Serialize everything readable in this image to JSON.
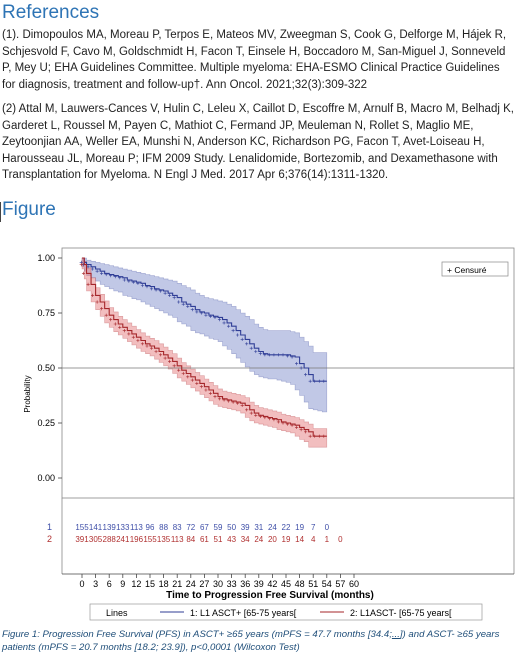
{
  "references": {
    "heading": "References",
    "items": [
      "(1). Dimopoulos MA, Moreau P, Terpos E, Mateos MV, Zweegman S, Cook G, Delforge M, Hájek R, Schjesvold F, Cavo M, Goldschmidt H, Facon T, Einsele H, Boccadoro M, San-Miguel J, Sonneveld P, Mey U; EHA Guidelines Committee. Multiple myeloma: EHA-ESMO Clinical Practice Guidelines for diagnosis, treatment and follow-up†. Ann Oncol. 2021;32(3):309-322",
      "(2) Attal M, Lauwers-Cances V, Hulin C, Leleu X, Caillot D, Escoffre M, Arnulf B, Macro M, Belhadj K, Garderet L, Roussel M, Payen C, Mathiot C, Fermand JP, Meuleman N, Rollet S, Maglio ME, Zeytoonjian AA, Weller EA, Munshi N, Anderson KC, Richardson PG, Facon T, Avet-Loiseau H, Harousseau JL, Moreau P; IFM 2009 Study. Lenalidomide, Bortezomib, and Dexamethasone with Transplantation for Myeloma. N Engl J Med. 2017 Apr 6;376(14):1311-1320."
    ]
  },
  "figure": {
    "heading": "Figure",
    "caption_pre": "Figure 1: Progression Free Survival (PFS) in ASCT+ ≥65 years (mPFS = 47.7 months [34.4;",
    "caption_link": "...",
    "caption_post": "]) and ASCT- ≥65 years patients (mPFS = 20.7 months [18.2; 23.9]), p<0,0001 (Wilcoxon Test)"
  },
  "chart_data": {
    "type": "line",
    "xlabel": "Time to Progression Free Survival (months)",
    "ylabel": "Probability",
    "xlim": [
      0,
      60
    ],
    "ylim": [
      0,
      1
    ],
    "xticks": [
      0,
      3,
      6,
      9,
      12,
      15,
      18,
      21,
      24,
      27,
      30,
      33,
      36,
      39,
      42,
      45,
      48,
      51,
      54,
      57,
      60
    ],
    "yticks": [
      0.0,
      0.25,
      0.5,
      0.75,
      1.0
    ],
    "ytick_labels": [
      "0.00",
      "0.25",
      "0.50",
      "0.75",
      "1.00"
    ],
    "reference_line": 0.5,
    "legend_censure": "+ Censuré",
    "legend_title": "Lines",
    "series": [
      {
        "name": "1: L1 ASCT+ [65-75 years[",
        "color": "#2f3d96",
        "band_color": "#8e9ad2",
        "x": [
          0,
          0.5,
          1,
          2,
          3,
          4,
          5,
          6,
          7,
          8,
          9,
          10,
          11,
          12,
          13,
          14,
          15,
          16,
          17,
          18,
          19,
          20,
          21,
          22,
          23,
          24,
          25,
          26,
          27,
          28,
          29,
          30,
          31,
          32,
          33,
          34,
          35,
          36,
          37,
          38,
          39,
          40,
          41,
          42,
          43,
          44,
          45,
          46,
          47,
          48,
          49,
          50,
          51,
          52,
          53,
          54
        ],
        "y": [
          1.0,
          0.98,
          0.97,
          0.96,
          0.95,
          0.94,
          0.93,
          0.925,
          0.92,
          0.915,
          0.91,
          0.9,
          0.895,
          0.89,
          0.885,
          0.875,
          0.87,
          0.86,
          0.855,
          0.85,
          0.84,
          0.83,
          0.82,
          0.8,
          0.79,
          0.78,
          0.765,
          0.755,
          0.75,
          0.74,
          0.735,
          0.73,
          0.72,
          0.705,
          0.69,
          0.67,
          0.65,
          0.63,
          0.61,
          0.59,
          0.575,
          0.565,
          0.56,
          0.56,
          0.56,
          0.56,
          0.56,
          0.555,
          0.55,
          0.52,
          0.5,
          0.47,
          0.44,
          0.44,
          0.44,
          0.44
        ],
        "lower": [
          1.0,
          0.96,
          0.94,
          0.92,
          0.91,
          0.895,
          0.88,
          0.87,
          0.86,
          0.85,
          0.845,
          0.83,
          0.825,
          0.815,
          0.81,
          0.8,
          0.79,
          0.78,
          0.77,
          0.76,
          0.75,
          0.74,
          0.73,
          0.71,
          0.7,
          0.69,
          0.67,
          0.66,
          0.655,
          0.645,
          0.635,
          0.63,
          0.62,
          0.6,
          0.585,
          0.565,
          0.545,
          0.525,
          0.505,
          0.485,
          0.47,
          0.46,
          0.455,
          0.45,
          0.45,
          0.445,
          0.44,
          0.435,
          0.425,
          0.4,
          0.375,
          0.345,
          0.315,
          0.31,
          0.305,
          0.3
        ],
        "upper": [
          1.0,
          1.0,
          0.99,
          0.985,
          0.98,
          0.975,
          0.97,
          0.965,
          0.96,
          0.955,
          0.95,
          0.945,
          0.94,
          0.935,
          0.93,
          0.925,
          0.92,
          0.915,
          0.91,
          0.905,
          0.9,
          0.895,
          0.885,
          0.875,
          0.865,
          0.855,
          0.84,
          0.83,
          0.82,
          0.815,
          0.81,
          0.805,
          0.8,
          0.79,
          0.78,
          0.765,
          0.75,
          0.735,
          0.72,
          0.7,
          0.685,
          0.675,
          0.67,
          0.67,
          0.67,
          0.67,
          0.67,
          0.665,
          0.66,
          0.64,
          0.62,
          0.6,
          0.57,
          0.57,
          0.57,
          0.57
        ]
      },
      {
        "name": "2: L1ASCT- [65-75 years[",
        "color": "#a5262a",
        "band_color": "#e7888a",
        "x": [
          0,
          0.5,
          1,
          2,
          3,
          4,
          5,
          6,
          7,
          8,
          9,
          10,
          11,
          12,
          13,
          14,
          15,
          16,
          17,
          18,
          19,
          20,
          21,
          22,
          23,
          24,
          25,
          26,
          27,
          28,
          29,
          30,
          31,
          32,
          33,
          34,
          35,
          36,
          37,
          38,
          39,
          40,
          41,
          42,
          43,
          44,
          45,
          46,
          47,
          48,
          49,
          50,
          51,
          52,
          53,
          54
        ],
        "y": [
          1.0,
          0.97,
          0.93,
          0.88,
          0.83,
          0.8,
          0.77,
          0.74,
          0.72,
          0.7,
          0.685,
          0.67,
          0.655,
          0.64,
          0.625,
          0.61,
          0.6,
          0.59,
          0.575,
          0.56,
          0.545,
          0.53,
          0.51,
          0.49,
          0.475,
          0.46,
          0.445,
          0.43,
          0.415,
          0.4,
          0.385,
          0.37,
          0.36,
          0.355,
          0.35,
          0.345,
          0.34,
          0.33,
          0.31,
          0.295,
          0.285,
          0.28,
          0.275,
          0.27,
          0.265,
          0.255,
          0.25,
          0.245,
          0.24,
          0.23,
          0.22,
          0.21,
          0.19,
          0.19,
          0.19,
          0.19
        ],
        "lower": [
          1.0,
          0.95,
          0.905,
          0.85,
          0.8,
          0.765,
          0.735,
          0.705,
          0.685,
          0.665,
          0.65,
          0.635,
          0.62,
          0.605,
          0.59,
          0.575,
          0.565,
          0.555,
          0.54,
          0.525,
          0.51,
          0.495,
          0.475,
          0.455,
          0.44,
          0.425,
          0.41,
          0.395,
          0.38,
          0.365,
          0.35,
          0.335,
          0.325,
          0.32,
          0.315,
          0.31,
          0.305,
          0.295,
          0.275,
          0.26,
          0.25,
          0.245,
          0.24,
          0.235,
          0.23,
          0.22,
          0.215,
          0.21,
          0.205,
          0.19,
          0.175,
          0.165,
          0.14,
          0.14,
          0.14,
          0.14
        ],
        "upper": [
          1.0,
          0.985,
          0.955,
          0.91,
          0.865,
          0.835,
          0.805,
          0.775,
          0.755,
          0.735,
          0.72,
          0.705,
          0.69,
          0.675,
          0.66,
          0.645,
          0.635,
          0.625,
          0.61,
          0.595,
          0.58,
          0.565,
          0.545,
          0.525,
          0.51,
          0.495,
          0.48,
          0.465,
          0.45,
          0.435,
          0.42,
          0.405,
          0.395,
          0.39,
          0.385,
          0.38,
          0.375,
          0.365,
          0.345,
          0.33,
          0.32,
          0.315,
          0.31,
          0.305,
          0.3,
          0.29,
          0.285,
          0.28,
          0.275,
          0.265,
          0.255,
          0.245,
          0.225,
          0.225,
          0.225,
          0.225
        ]
      }
    ],
    "risk_table": {
      "times": [
        0,
        3,
        6,
        9,
        12,
        15,
        18,
        21,
        24,
        27,
        30,
        33,
        36,
        39,
        42,
        45,
        48,
        51,
        54,
        57
      ],
      "rows": [
        {
          "label": "1",
          "color": "#3f4fa8",
          "values": [
            "155",
            "141",
            "139",
            "133",
            "113",
            "96",
            "88",
            "83",
            "72",
            "67",
            "59",
            "50",
            "39",
            "31",
            "24",
            "22",
            "19",
            "7",
            "0",
            ""
          ]
        },
        {
          "label": "2",
          "color": "#b03030",
          "values": [
            "391",
            "305",
            "288",
            "241",
            "196",
            "155",
            "135",
            "113",
            "84",
            "61",
            "51",
            "43",
            "34",
            "24",
            "20",
            "19",
            "14",
            "4",
            "1",
            "0"
          ]
        }
      ]
    }
  }
}
